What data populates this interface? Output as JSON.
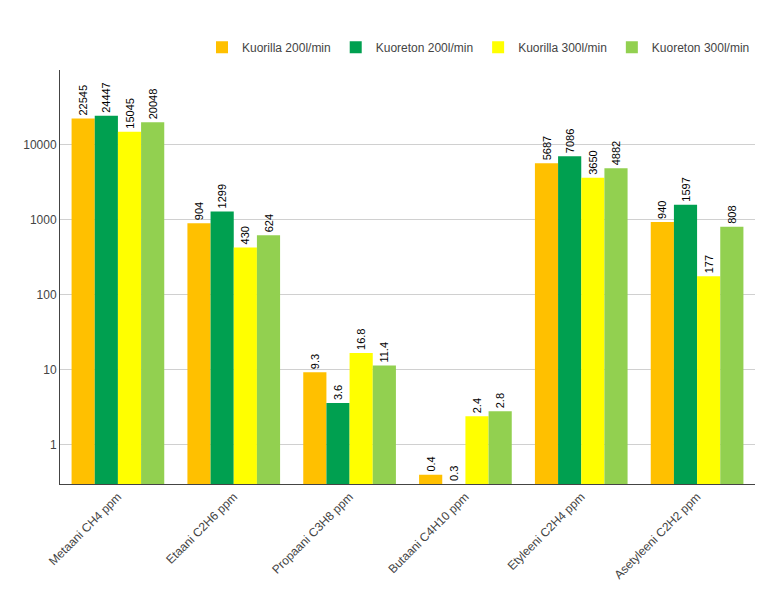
{
  "chart_data": {
    "type": "bar",
    "categories": [
      "Metaani CH4 ppm",
      "Etaani C2H6 ppm",
      "Propaani C3H8 ppm",
      "Butaani C4H10 ppm",
      "Etyleeni C2H4 ppm",
      "Asetyleeni C2H2 ppm"
    ],
    "series": [
      {
        "name": "Kuorilla 200l/min",
        "color": "#FFC000",
        "values": [
          22545,
          904,
          9.3,
          0.4,
          5687,
          940
        ]
      },
      {
        "name": "Kuoreton 200l/min",
        "color": "#00A050",
        "values": [
          24447,
          1299,
          3.6,
          0.3,
          7086,
          1597
        ]
      },
      {
        "name": "Kuorilla 300l/min",
        "color": "#FFFF00",
        "values": [
          15045,
          430,
          16.8,
          2.4,
          3650,
          177
        ]
      },
      {
        "name": "Kuoreton 300l/min",
        "color": "#92D050",
        "values": [
          20048,
          624,
          11.4,
          2.8,
          4882,
          808
        ]
      }
    ],
    "ylim": [
      0.3,
      100000
    ],
    "yticks": [
      1,
      10,
      100,
      1000,
      10000
    ],
    "log": "y",
    "grid": true,
    "legend": "upper right",
    "data_labels": true
  }
}
